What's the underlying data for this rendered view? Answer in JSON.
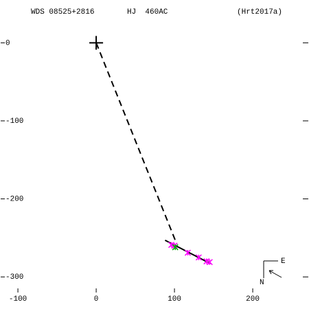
{
  "chart_data": {
    "type": "scatter",
    "title": "WDS 08525+2816",
    "subtitle": "HJ  460AC",
    "reference": "(Hrt2017a)",
    "xlim": [
      -122,
      271
    ],
    "ylim": [
      -320,
      54
    ],
    "xticks": [
      -100,
      0,
      100,
      200
    ],
    "yticks": [
      0,
      -100,
      -200,
      -300
    ],
    "primary": {
      "x": 0,
      "y": 0
    },
    "lines": [
      {
        "style": "dashed",
        "color": "#000000",
        "x": [
          0,
          103
        ],
        "values": [
          0,
          -258
        ]
      },
      {
        "style": "solid",
        "color": "#000000",
        "x": [
          88,
          146
        ],
        "values": [
          -253,
          -283
        ]
      }
    ],
    "series": [
      {
        "color": "#ff00ff",
        "marker": "star",
        "x": [
          96,
          100,
          117,
          131,
          141,
          145
        ],
        "values": [
          -259,
          -260,
          -269,
          -275,
          -280,
          -281
        ]
      },
      {
        "color": "#00aa00",
        "marker": "star",
        "x": [
          101
        ],
        "values": [
          -262
        ]
      }
    ],
    "compass": {
      "east": "E",
      "north": "N"
    }
  }
}
